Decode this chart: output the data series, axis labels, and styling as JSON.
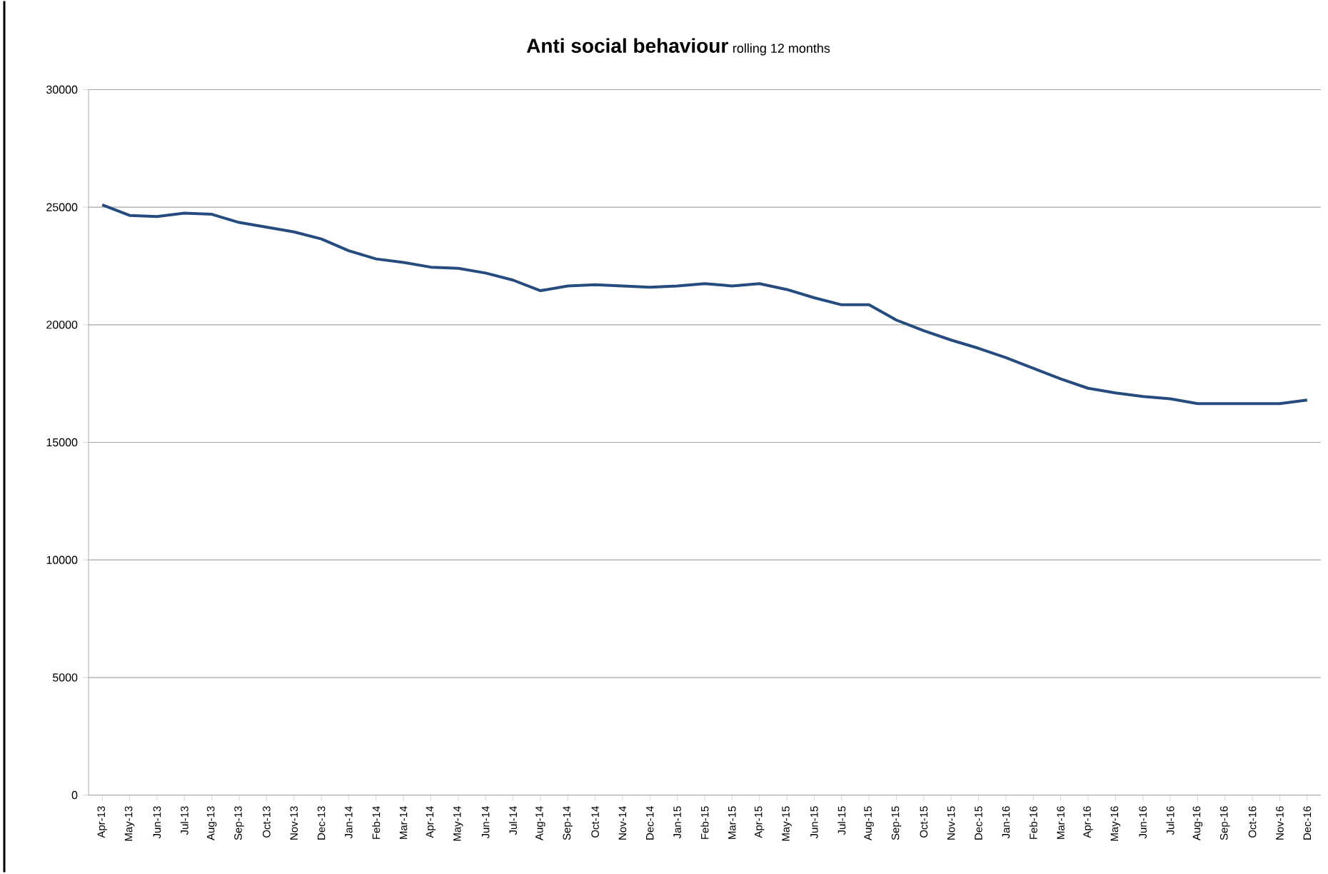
{
  "chart_data": {
    "type": "line",
    "title": "Anti social behaviour",
    "subtitle": "rolling 12 months",
    "categories": [
      "Apr-13",
      "May-13",
      "Jun-13",
      "Jul-13",
      "Aug-13",
      "Sep-13",
      "Oct-13",
      "Nov-13",
      "Dec-13",
      "Jan-14",
      "Feb-14",
      "Mar-14",
      "Apr-14",
      "May-14",
      "Jun-14",
      "Jul-14",
      "Aug-14",
      "Sep-14",
      "Oct-14",
      "Nov-14",
      "Dec-14",
      "Jan-15",
      "Feb-15",
      "Mar-15",
      "Apr-15",
      "May-15",
      "Jun-15",
      "Jul-15",
      "Aug-15",
      "Sep-15",
      "Oct-15",
      "Nov-15",
      "Dec-15",
      "Jan-16",
      "Feb-16",
      "Mar-16",
      "Apr-16",
      "May-16",
      "Jun-16",
      "Jul-16",
      "Aug-16",
      "Sep-16",
      "Oct-16",
      "Nov-16",
      "Dec-16"
    ],
    "values": [
      25100,
      24650,
      24600,
      24750,
      24700,
      24350,
      24150,
      23950,
      23650,
      23150,
      22800,
      22650,
      22450,
      22400,
      22200,
      21900,
      21450,
      21650,
      21700,
      21650,
      21600,
      21650,
      21750,
      21650,
      21750,
      21500,
      21150,
      20850,
      20850,
      20200,
      19750,
      19350,
      19000,
      18600,
      18150,
      17700,
      17300,
      17100,
      16950,
      16850,
      16650,
      16650,
      16650,
      16650,
      16800
    ],
    "color": "#264c7f",
    "ylim": [
      0,
      30000
    ],
    "yticks": [
      0,
      5000,
      10000,
      15000,
      20000,
      25000,
      30000
    ],
    "grid": "y",
    "marker": "none",
    "line_style": "solid"
  }
}
